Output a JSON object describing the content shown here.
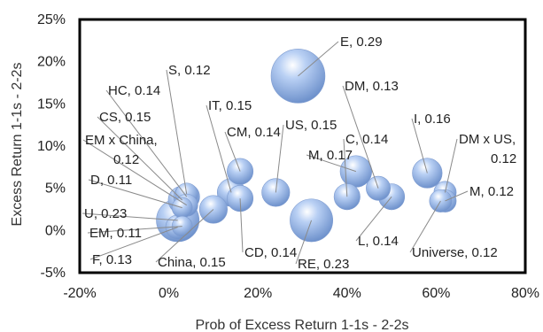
{
  "chart_data": {
    "type": "scatter",
    "subtype": "bubble",
    "xlabel": "Prob of Excess Return 1-1s - 2-2s",
    "ylabel": "Excess Return 1-1s - 2-2s",
    "xlim": [
      -0.2,
      0.8
    ],
    "ylim": [
      -0.05,
      0.25
    ],
    "x_ticks": [
      -0.2,
      0,
      0.2,
      0.4,
      0.6,
      0.8
    ],
    "x_tick_labels": [
      "-20%",
      "0%",
      "20%",
      "40%",
      "60%",
      "80%"
    ],
    "y_ticks": [
      -0.05,
      0,
      0.05,
      0.1,
      0.15,
      0.2,
      0.25
    ],
    "y_tick_labels": [
      "-5%",
      "0%",
      "5%",
      "10%",
      "15%",
      "20%",
      "25%"
    ],
    "grid": false,
    "legend": "none",
    "bubble_color": "#8fb0e6",
    "points": [
      {
        "name": "E",
        "size": 0.29,
        "x": 0.29,
        "y": 0.183,
        "label": "E, 0.29"
      },
      {
        "name": "S",
        "size": 0.12,
        "x": 0.04,
        "y": 0.043,
        "label": "S, 0.12"
      },
      {
        "name": "HC",
        "size": 0.14,
        "x": 0.04,
        "y": 0.04,
        "label": "HC, 0.14"
      },
      {
        "name": "IT",
        "size": 0.15,
        "x": 0.14,
        "y": 0.045,
        "label": "IT, 0.15"
      },
      {
        "name": "CS",
        "size": 0.15,
        "x": 0.03,
        "y": 0.036,
        "label": "CS, 0.15"
      },
      {
        "name": "CM",
        "size": 0.14,
        "x": 0.16,
        "y": 0.07,
        "label": "CM, 0.14"
      },
      {
        "name": "EM x China",
        "size": 0.12,
        "x": 0.04,
        "y": 0.03,
        "label": "EM x China, 0.12"
      },
      {
        "name": "D",
        "size": 0.11,
        "x": 0.03,
        "y": 0.027,
        "label": "D, 0.11"
      },
      {
        "name": "U",
        "size": 0.23,
        "x": 0.02,
        "y": 0.012,
        "label": "U, 0.23"
      },
      {
        "name": "EM",
        "size": 0.11,
        "x": 0.03,
        "y": 0.005,
        "label": "EM, 0.11"
      },
      {
        "name": "F",
        "size": 0.13,
        "x": 0.02,
        "y": 0.004,
        "label": "F, 0.13"
      },
      {
        "name": "China",
        "size": 0.15,
        "x": 0.1,
        "y": 0.025,
        "label": "China, 0.15"
      },
      {
        "name": "CD",
        "size": 0.14,
        "x": 0.16,
        "y": 0.038,
        "label": "CD, 0.14"
      },
      {
        "name": "RE",
        "size": 0.23,
        "x": 0.32,
        "y": 0.012,
        "label": "RE, 0.23"
      },
      {
        "name": "US",
        "size": 0.15,
        "x": 0.24,
        "y": 0.045,
        "label": "US, 0.15"
      },
      {
        "name": "M",
        "size": 0.17,
        "x": 0.42,
        "y": 0.07,
        "label": "M, 0.17"
      },
      {
        "name": "C",
        "size": 0.14,
        "x": 0.4,
        "y": 0.04,
        "label": "C, 0.14"
      },
      {
        "name": "DM",
        "size": 0.13,
        "x": 0.47,
        "y": 0.05,
        "label": "DM, 0.13"
      },
      {
        "name": "L",
        "size": 0.14,
        "x": 0.5,
        "y": 0.04,
        "label": "L, 0.14"
      },
      {
        "name": "I",
        "size": 0.16,
        "x": 0.58,
        "y": 0.068,
        "label": "I, 0.16"
      },
      {
        "name": "DM x US",
        "size": 0.12,
        "x": 0.62,
        "y": 0.045,
        "label": "DM x US, 0.12"
      },
      {
        "name": "M2",
        "size": 0.12,
        "x": 0.62,
        "y": 0.035,
        "label": "M, 0.12"
      },
      {
        "name": "Universe",
        "size": 0.12,
        "x": 0.61,
        "y": 0.035,
        "label": "Universe, 0.12"
      }
    ]
  }
}
